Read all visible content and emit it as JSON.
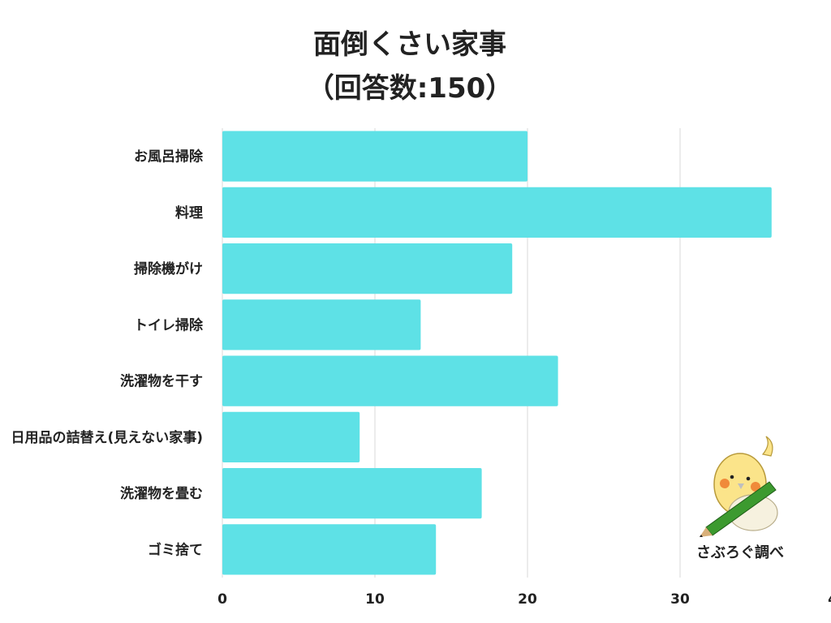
{
  "chart_data": {
    "type": "bar",
    "orientation": "horizontal",
    "title": "面倒くさい家事",
    "subtitle": "（回答数:150）",
    "categories": [
      "お風呂掃除",
      "料理",
      "掃除機がけ",
      "トイレ掃除",
      "洗濯物を干す",
      "日用品の詰替え(見えない家事)",
      "洗濯物を畳む",
      "ゴミ捨て"
    ],
    "values": [
      20,
      36,
      19,
      13,
      22,
      9,
      17,
      14
    ],
    "xticks": [
      "0",
      "10",
      "20",
      "30",
      "4"
    ],
    "xlim": [
      0,
      40
    ],
    "grid": true,
    "bar_color": "#5ee1e6"
  },
  "credit": "さぶろぐ調べ",
  "colors": {
    "bird_body": "#fbe48a",
    "bird_cheek": "#f08a3a",
    "pencil": "#3c9a2f"
  }
}
